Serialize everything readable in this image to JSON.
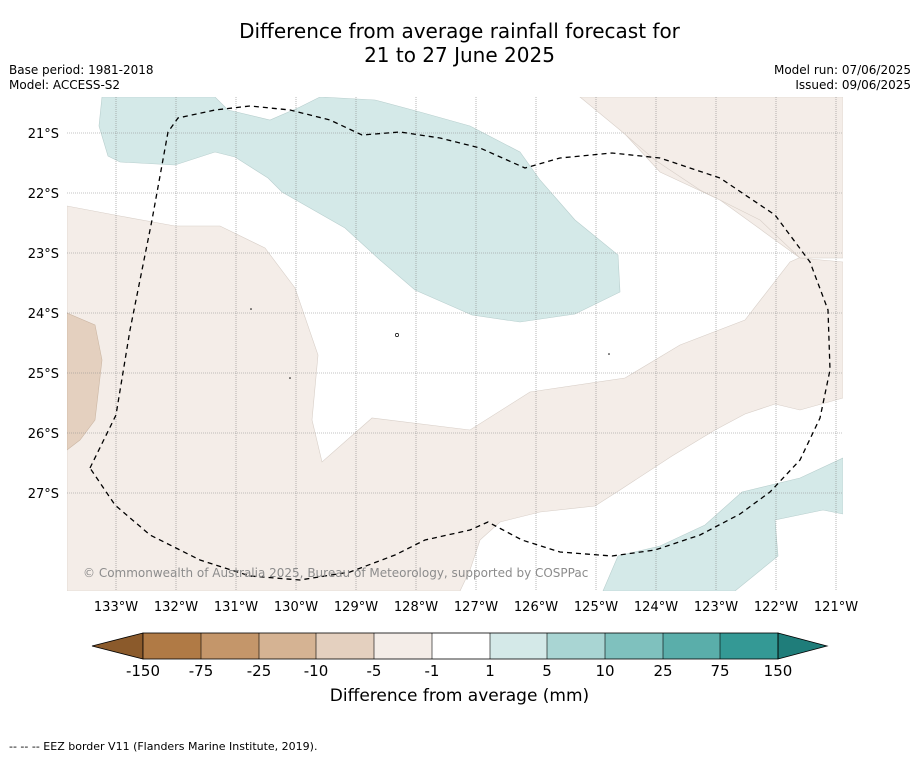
{
  "title_line1": "Difference from average rainfall forecast for",
  "title_line2": "21 to 27 June 2025",
  "base_period": "Base period: 1981-2018",
  "model": "Model: ACCESS-S2",
  "model_run": "Model run: 07/06/2025",
  "issued": "Issued: 09/06/2025",
  "copyright": "© Commonwealth of Australia 2025, Bureau of Meteorology, supported by COSPPac",
  "lat_labels": [
    "21°S",
    "22°S",
    "23°S",
    "24°S",
    "25°S",
    "26°S",
    "27°S"
  ],
  "lon_labels": [
    "133°W",
    "132°W",
    "131°W",
    "130°W",
    "129°W",
    "128°W",
    "127°W",
    "126°W",
    "125°W",
    "124°W",
    "123°W",
    "122°W",
    "121°W"
  ],
  "colorbar": {
    "title": "Difference from average (mm)",
    "ticks": [
      "-150",
      "-75",
      "-25",
      "-10",
      "-5",
      "-1",
      "1",
      "5",
      "10",
      "25",
      "75",
      "150"
    ],
    "colors": [
      "#8b5a2b",
      "#b07a45",
      "#c4966a",
      "#d5b393",
      "#e4d0bf",
      "#f4ede8",
      "#ffffff",
      "#d4e9e8",
      "#a9d5d3",
      "#7fc1be",
      "#5aaeaa",
      "#349995",
      "#1f7d7a"
    ]
  },
  "legend_note": "-- -- -- EEZ border V11 (Flanders Marine Institute, 2019)."
}
